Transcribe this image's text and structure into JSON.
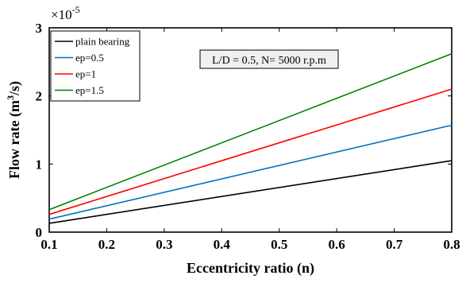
{
  "chart_data": {
    "type": "line",
    "xlabel": "Eccentricity ratio (n)",
    "ylabel_main": "Flow rate (m",
    "ylabel_sup": "3",
    "ylabel_tail": "/s)",
    "y_multiplier_base": "×10",
    "y_multiplier_exp": "-5",
    "xlim": [
      0.1,
      0.8
    ],
    "ylim": [
      0,
      3
    ],
    "xticks": [
      "0.1",
      "0.2",
      "0.3",
      "0.4",
      "0.5",
      "0.6",
      "0.7",
      "0.8"
    ],
    "yticks": [
      "0",
      "1",
      "2",
      "3"
    ],
    "grid": false,
    "legend_position": "top-left",
    "annotation": "L/D = 0.5, N= 5000 r.p.m",
    "series": [
      {
        "name": "plain bearing",
        "color": "#000000",
        "x": [
          0.1,
          0.8
        ],
        "y": [
          0.13,
          1.05
        ]
      },
      {
        "name": "ep=0.5",
        "color": "#0072BD",
        "x": [
          0.1,
          0.8
        ],
        "y": [
          0.19,
          1.57
        ]
      },
      {
        "name": "ep=1",
        "color": "#FF0000",
        "x": [
          0.1,
          0.8
        ],
        "y": [
          0.26,
          2.1
        ]
      },
      {
        "name": "ep=1.5",
        "color": "#008000",
        "x": [
          0.1,
          0.8
        ],
        "y": [
          0.33,
          2.62
        ]
      }
    ]
  }
}
